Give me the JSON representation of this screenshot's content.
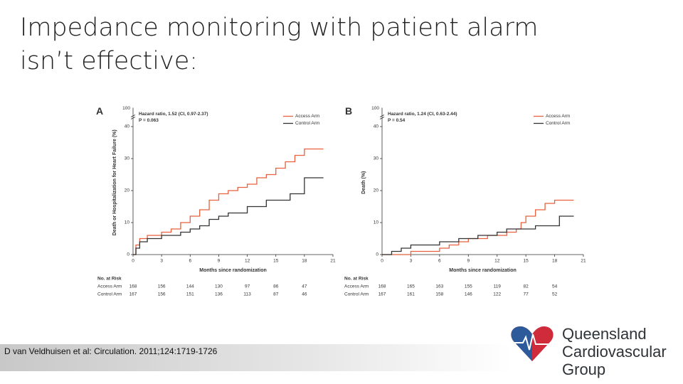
{
  "header": {
    "title": [
      "Impedance monitoring with patient alarm",
      "isn’t effective:"
    ]
  },
  "citation": "D van Veldhuisen et al: Circulation. 2011;124:1719-1726",
  "logo": {
    "lines": [
      "Queensland",
      "Cardiovascular",
      "Group"
    ]
  },
  "chart_data": [
    {
      "type": "line",
      "panel_label": "A",
      "annotation": [
        "Hazard ratio, 1.52 (CI, 0.97-2.37)",
        "P = 0.063"
      ],
      "xlabel": "Months since randomization",
      "ylabel": "Death or Hospitalization for Heart Failure (%)",
      "xlim": [
        0,
        21
      ],
      "xticks": [
        0,
        3,
        6,
        9,
        12,
        15,
        18,
        21
      ],
      "ylim": [
        0,
        45
      ],
      "yticks": [
        0,
        10,
        20,
        30,
        40
      ],
      "axis_top_label": "100",
      "legend": "upper right",
      "series": [
        {
          "name": "Access Arm",
          "color": "#e8603c",
          "x": [
            0,
            0.3,
            0.3,
            0.7,
            0.7,
            1.5,
            1.5,
            3,
            3,
            4,
            4,
            5,
            5,
            6,
            6,
            7,
            7,
            8,
            8,
            9,
            9,
            10,
            10,
            11,
            11,
            12,
            12,
            13,
            13,
            14,
            14,
            15,
            15,
            16,
            16,
            17,
            17,
            18,
            18,
            20
          ],
          "values": [
            0,
            0,
            3,
            3,
            5,
            5,
            6,
            6,
            7,
            7,
            8,
            8,
            10,
            10,
            12,
            12,
            14,
            14,
            17,
            17,
            19,
            19,
            20,
            20,
            21,
            21,
            22,
            22,
            24,
            24,
            25,
            25,
            27,
            27,
            29,
            29,
            31,
            31,
            33,
            33
          ]
        },
        {
          "name": "Control Arm",
          "color": "#333333",
          "x": [
            0,
            0.3,
            0.3,
            0.7,
            0.7,
            1.5,
            1.5,
            3,
            3,
            5,
            5,
            6,
            6,
            7,
            7,
            8,
            8,
            9,
            9,
            10,
            10,
            12,
            12,
            14,
            14,
            16.5,
            16.5,
            18,
            18,
            20
          ],
          "values": [
            0,
            0,
            2,
            2,
            4,
            4,
            5,
            5,
            6,
            6,
            7,
            7,
            8,
            8,
            9,
            9,
            11,
            11,
            12,
            12,
            13,
            13,
            15,
            15,
            17,
            17,
            19,
            19,
            24,
            24
          ]
        }
      ],
      "at_risk": {
        "title": "No. at Risk",
        "rows": [
          {
            "name": "Access Arm",
            "values": [
              168,
              156,
              144,
              130,
              97,
              86,
              47
            ]
          },
          {
            "name": "Control Arm",
            "values": [
              167,
              156,
              151,
              136,
              113,
              87,
              46
            ]
          }
        ]
      }
    },
    {
      "type": "line",
      "panel_label": "B",
      "annotation": [
        "Hazard ratio, 1.24 (CI, 0.63-2.44)",
        "P = 0.54"
      ],
      "xlabel": "Months since randomization",
      "ylabel": "Death (%)",
      "xlim": [
        0,
        21
      ],
      "xticks": [
        0,
        3,
        6,
        9,
        12,
        15,
        18,
        21
      ],
      "ylim": [
        0,
        45
      ],
      "yticks": [
        0,
        10,
        20,
        30,
        40
      ],
      "axis_top_label": "100",
      "legend": "upper right",
      "series": [
        {
          "name": "Access Arm",
          "color": "#e8603c",
          "x": [
            0,
            3,
            3,
            6,
            6,
            7,
            7,
            8,
            8,
            9,
            9,
            11,
            11,
            13,
            13,
            14,
            14,
            14.5,
            14.5,
            15,
            15,
            16,
            16,
            17,
            17,
            18,
            18,
            20
          ],
          "values": [
            0,
            0,
            1,
            1,
            2,
            2,
            3,
            3,
            4,
            4,
            5,
            5,
            6,
            6,
            7,
            7,
            8,
            8,
            10,
            10,
            12,
            12,
            14,
            14,
            16,
            16,
            17,
            17
          ]
        },
        {
          "name": "Control Arm",
          "color": "#333333",
          "x": [
            0,
            1,
            1,
            2,
            2,
            3,
            3,
            6,
            6,
            8,
            8,
            10,
            10,
            12,
            12,
            13,
            13,
            16,
            16,
            18.5,
            18.5,
            20
          ],
          "values": [
            0,
            0,
            1,
            1,
            2,
            2,
            3,
            3,
            4,
            4,
            5,
            5,
            6,
            6,
            7,
            7,
            8,
            8,
            9,
            9,
            12,
            12
          ]
        }
      ],
      "at_risk": {
        "title": "No. at Risk",
        "rows": [
          {
            "name": "Access Arm",
            "values": [
              168,
              165,
              163,
              155,
              119,
              82,
              54
            ]
          },
          {
            "name": "Control Arm",
            "values": [
              167,
              161,
              158,
              146,
              122,
              77,
              52
            ]
          }
        ]
      }
    }
  ]
}
